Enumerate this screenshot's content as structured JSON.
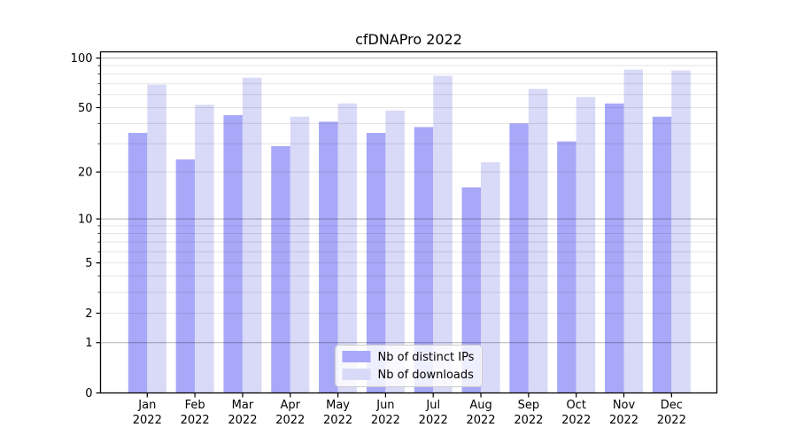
{
  "page": {
    "background": "#ffffff"
  },
  "chart_data": {
    "type": "bar",
    "title": "cfDNAPro 2022",
    "categories": [
      "Jan",
      "Feb",
      "Mar",
      "Apr",
      "May",
      "Jun",
      "Jul",
      "Aug",
      "Sep",
      "Oct",
      "Nov",
      "Dec"
    ],
    "category_year": "2022",
    "series": [
      {
        "name": "Nb of distinct IPs",
        "color": "#a8a8f9",
        "values": [
          35,
          24,
          45,
          29,
          41,
          35,
          38,
          16,
          40,
          31,
          53,
          44
        ]
      },
      {
        "name": "Nb of downloads",
        "color": "#d9d9f8",
        "values": [
          69,
          52,
          76,
          44,
          53,
          48,
          78,
          23,
          65,
          58,
          85,
          84
        ]
      }
    ],
    "xlabel": "",
    "ylabel": "",
    "yscale": "log1p",
    "ylim": [
      0,
      109
    ],
    "yticks": [
      0,
      1,
      2,
      5,
      10,
      20,
      50,
      100
    ],
    "ytick_labels": [
      "0",
      "1",
      "2",
      "5",
      "10",
      "20",
      "50",
      "100"
    ],
    "grid": {
      "visible": true,
      "major_at": [
        1,
        10,
        100
      ],
      "minor_at": [
        2,
        3,
        4,
        5,
        6,
        7,
        8,
        9,
        20,
        30,
        40,
        50,
        60,
        70,
        80,
        90
      ]
    },
    "legend": {
      "position": "lower center"
    }
  }
}
